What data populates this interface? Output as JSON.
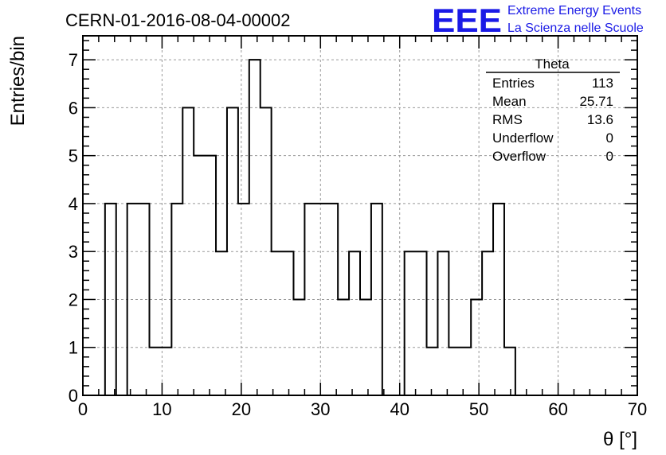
{
  "header": {
    "run_title": "CERN-01-2016-08-04-00002",
    "logo_mark": "EEE",
    "logo_line1": "Extreme Energy Events",
    "logo_line2": "La Scienza nelle Scuole"
  },
  "stats_box": {
    "title": "Theta",
    "rows": [
      {
        "label": "Entries",
        "value": "113"
      },
      {
        "label": "Mean",
        "value": "25.71"
      },
      {
        "label": "RMS",
        "value": "13.6"
      },
      {
        "label": "Underflow",
        "value": "0"
      },
      {
        "label": "Overflow",
        "value": "0"
      }
    ]
  },
  "chart_data": {
    "type": "bar",
    "histogram_style": "step",
    "xlabel": "θ [°]",
    "ylabel": "Entries/bin",
    "xlim": [
      0,
      70
    ],
    "ylim": [
      0,
      7.5
    ],
    "grid": true,
    "bin_width": 1.4,
    "x_ticks": [
      0,
      10,
      20,
      30,
      40,
      50,
      60,
      70
    ],
    "y_ticks": [
      0,
      1,
      2,
      3,
      4,
      5,
      6,
      7
    ],
    "values": [
      0,
      0,
      4,
      0,
      4,
      4,
      1,
      1,
      4,
      6,
      5,
      5,
      3,
      6,
      4,
      7,
      6,
      3,
      3,
      2,
      4,
      4,
      4,
      2,
      3,
      2,
      4,
      0,
      0,
      3,
      3,
      1,
      3,
      1,
      1,
      2,
      3,
      4,
      1,
      0,
      0,
      0,
      0,
      0,
      0,
      0,
      0,
      0,
      0,
      0
    ]
  },
  "colors": {
    "line": "#000000",
    "grid": "#999999",
    "logo": "#1a1ae6"
  }
}
